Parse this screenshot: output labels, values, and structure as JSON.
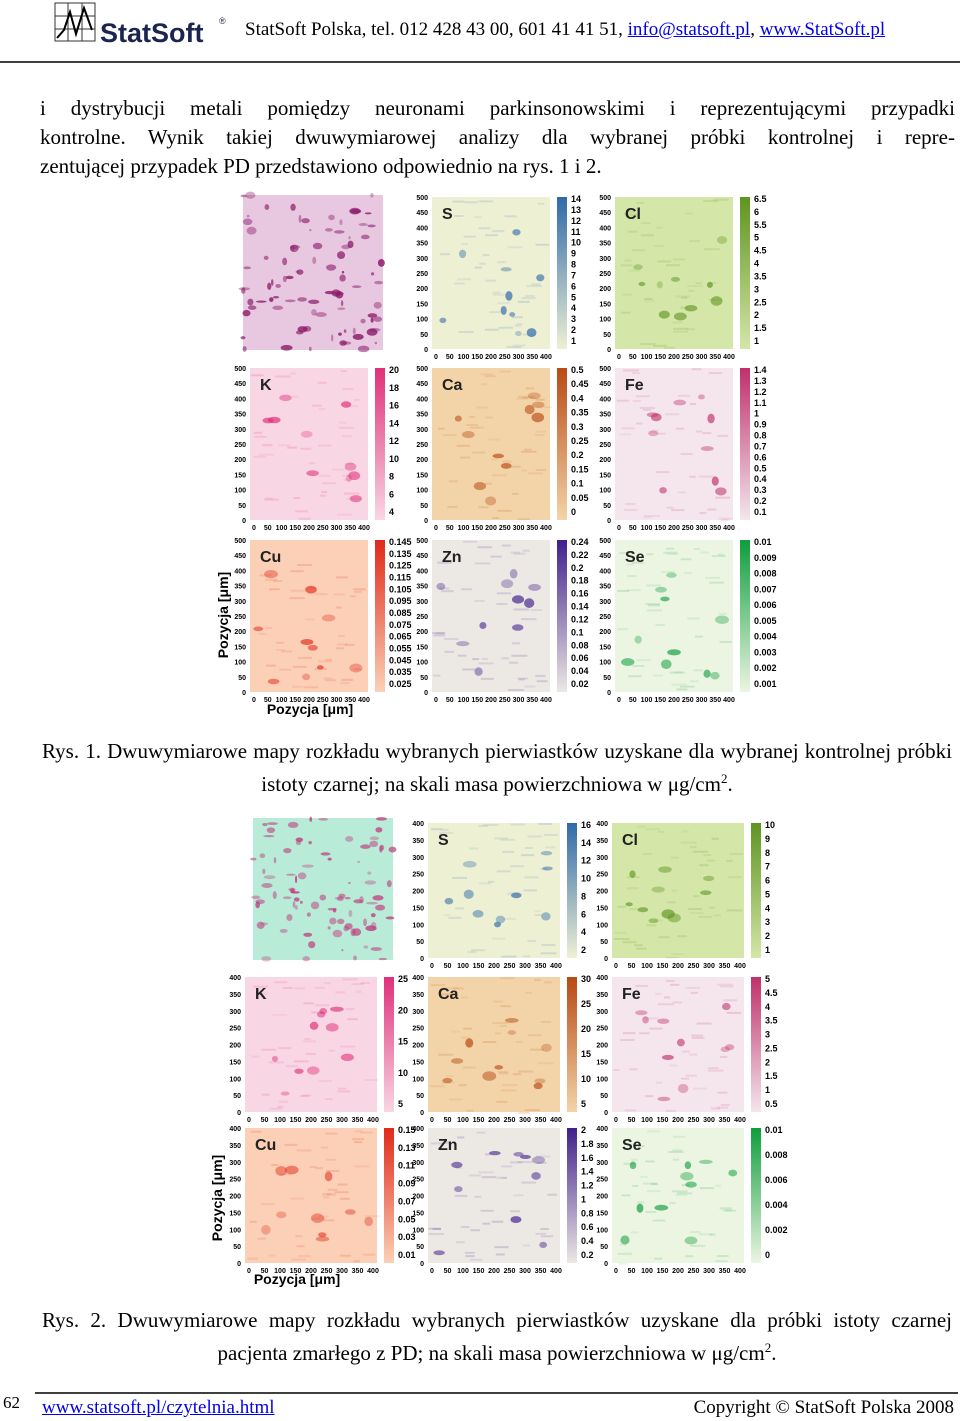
{
  "header": {
    "logo": "StatSoft",
    "logo_mark": "®",
    "contact": "StatSoft Polska, tel. 012 428 43 00, 601 41 41 51, ",
    "email": "info@statsoft.pl",
    "separator": ", ",
    "website": "www.StatSoft.pl"
  },
  "body": {
    "lines": [
      "i dystrybucji metali pomiędzy neuronami parkinsonowskimi i reprezentującymi przypadki",
      "kontrolne. Wynik takiej dwuwymiarowej analizy dla wybranej próbki kontrolnej i repre-",
      "zentującej przypadek PD przedstawiono odpowiednio na rys. 1 i 2."
    ]
  },
  "figures": [
    {
      "y_ticks": [
        500,
        450,
        400,
        350,
        300,
        250,
        200,
        150,
        100,
        50,
        0
      ],
      "x_ticks": [
        0,
        50,
        100,
        150,
        200,
        250,
        300,
        350,
        400
      ],
      "axis_label": "Pozycja [μm]",
      "panels": [
        {
          "element": "S",
          "scale": [
            14,
            13,
            12,
            11,
            10,
            9,
            8,
            7,
            6,
            5,
            4,
            3,
            2,
            1
          ]
        },
        {
          "element": "Cl",
          "scale": [
            6.5,
            6,
            5.5,
            5,
            4.5,
            4,
            3.5,
            3,
            2.5,
            2,
            1.5,
            1
          ]
        },
        {
          "element": "K",
          "scale": [
            20,
            18,
            16,
            14,
            12,
            10,
            8,
            6,
            4
          ]
        },
        {
          "element": "Ca",
          "scale": [
            0.5,
            0.45,
            0.4,
            0.35,
            0.3,
            0.25,
            0.2,
            0.15,
            0.1,
            0.05,
            0
          ]
        },
        {
          "element": "Fe",
          "scale": [
            1.4,
            1.3,
            1.2,
            1.1,
            1,
            0.9,
            0.8,
            0.7,
            0.6,
            0.5,
            0.4,
            0.3,
            0.2,
            0.1
          ]
        },
        {
          "element": "Cu",
          "scale": [
            0.145,
            0.135,
            0.125,
            0.115,
            0.105,
            0.095,
            0.085,
            0.075,
            0.065,
            0.055,
            0.045,
            0.035,
            0.025
          ]
        },
        {
          "element": "Zn",
          "scale": [
            0.24,
            0.22,
            0.2,
            0.18,
            0.16,
            0.14,
            0.12,
            0.1,
            0.08,
            0.06,
            0.04,
            0.02
          ]
        },
        {
          "element": "Se",
          "scale": [
            0.01,
            0.009,
            0.008,
            0.007,
            0.006,
            0.005,
            0.004,
            0.003,
            0.002,
            0.001
          ]
        }
      ],
      "caption": {
        "label": "Rys. 1.",
        "text": " Dwuwymiarowe mapy rozkładu wybranych pierwiastków uzyskane dla wybranej kontrolnej próbki istoty czarnej; na skali masa powierzchniowa w μg/cm",
        "superscript": "2",
        "end": "."
      }
    },
    {
      "y_ticks": [
        400,
        350,
        300,
        250,
        200,
        150,
        100,
        50,
        0
      ],
      "x_ticks": [
        0,
        50,
        100,
        150,
        200,
        250,
        300,
        350,
        400
      ],
      "axis_label": "Pozycja [μm]",
      "panels": [
        {
          "element": "S",
          "scale": [
            16,
            14,
            12,
            10,
            8,
            6,
            4,
            2
          ]
        },
        {
          "element": "Cl",
          "scale": [
            10,
            9,
            8,
            7,
            6,
            5,
            4,
            3,
            2,
            1
          ]
        },
        {
          "element": "K",
          "scale": [
            25,
            20,
            15,
            10,
            5
          ]
        },
        {
          "element": "Ca",
          "scale": [
            30,
            25,
            20,
            15,
            10,
            5
          ]
        },
        {
          "element": "Fe",
          "scale": [
            5,
            4.5,
            4,
            3.5,
            3,
            2.5,
            2,
            1.5,
            1,
            0.5
          ]
        },
        {
          "element": "Cu",
          "scale": [
            0.15,
            0.13,
            0.11,
            0.09,
            0.07,
            0.05,
            0.03,
            0.01
          ]
        },
        {
          "element": "Zn",
          "scale": [
            2,
            1.8,
            1.6,
            1.4,
            1.2,
            1,
            0.8,
            0.6,
            0.4,
            0.2
          ]
        },
        {
          "element": "Se",
          "scale": [
            0.01,
            0.008,
            0.006,
            0.004,
            0.002,
            0
          ]
        }
      ],
      "caption": {
        "label": "Rys. 2.",
        "text": " Dwuwymiarowe mapy rozkładu wybranych pierwiastków uzyskane dla próbki istoty czarnej pacjenta zmarłego z PD; na skali masa powierzchniowa w μg/cm",
        "superscript": "2",
        "end": "."
      }
    }
  ],
  "footer": {
    "page": "62",
    "link": "www.statsoft.pl/czytelnia.html",
    "copyright": "Copyright © StatSoft Polska 2008"
  }
}
